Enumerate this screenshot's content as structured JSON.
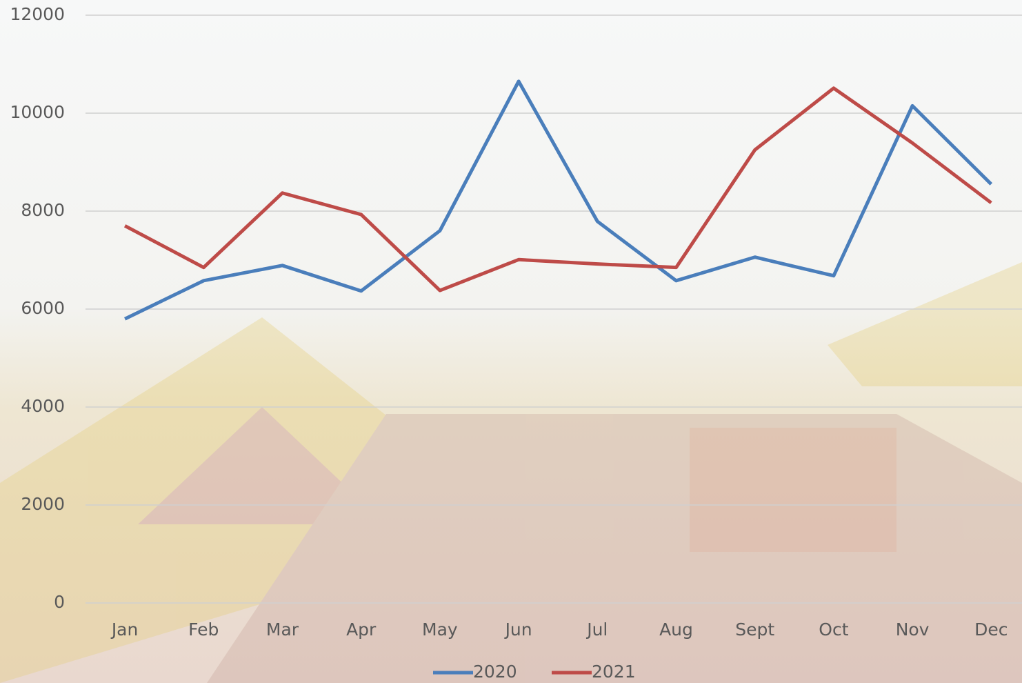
{
  "chart_data": {
    "type": "line",
    "categories": [
      "Jan",
      "Feb",
      "Mar",
      "Apr",
      "May",
      "Jun",
      "Jul",
      "Aug",
      "Sept",
      "Oct",
      "Nov",
      "Dec"
    ],
    "series": [
      {
        "name": "2020",
        "color": "#4a7ebb",
        "values": [
          5800,
          6580,
          6890,
          6370,
          7600,
          10650,
          7790,
          6580,
          7060,
          6680,
          10150,
          8550
        ]
      },
      {
        "name": "2021",
        "color": "#be4b48",
        "values": [
          7700,
          6850,
          8370,
          7930,
          6380,
          7010,
          6920,
          6850,
          9250,
          10510,
          9390,
          8170
        ]
      }
    ],
    "ylim": [
      0,
      12000
    ],
    "yticks": [
      0,
      2000,
      4000,
      6000,
      8000,
      10000,
      12000
    ],
    "grid": true,
    "legend": "bottom"
  }
}
